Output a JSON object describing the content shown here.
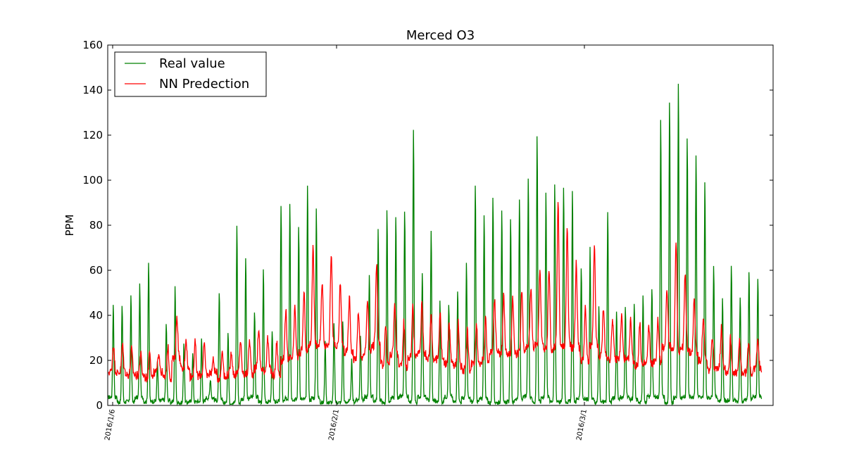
{
  "chart_data": {
    "type": "line",
    "title": "Merced O3",
    "xlabel": "",
    "ylabel": "PPM",
    "ylim": [
      0,
      160
    ],
    "yticks": [
      "0",
      "20",
      "40",
      "60",
      "80",
      "100",
      "120",
      "140",
      "160"
    ],
    "xticks": [
      "2016/1/6",
      "2016/2/1",
      "2016/3/1"
    ],
    "grid": false,
    "legend": "top-left",
    "series": [
      {
        "name": "Real value",
        "color": "#008000",
        "approximate_daily_peaks": [
          45,
          45,
          49,
          54,
          64,
          20,
          36,
          53,
          28,
          23,
          30,
          12,
          51,
          33,
          80,
          66,
          42,
          60,
          34,
          90,
          91,
          80,
          99,
          88,
          28,
          36,
          37,
          20,
          31,
          59,
          78,
          87,
          85,
          87,
          123,
          60,
          78,
          46,
          45,
          52,
          63,
          98,
          86,
          92,
          88,
          84,
          92,
          102,
          120,
          96,
          99,
          98,
          97,
          62,
          70,
          44,
          86,
          42,
          44,
          45,
          50,
          53,
          128,
          136,
          144,
          120,
          112,
          100,
          62,
          47,
          63,
          49,
          60,
          57
        ]
      },
      {
        "name": "NN Predection",
        "color": "#ff0000",
        "approximate_daily_peaks": [
          27,
          27,
          25,
          23,
          25,
          24,
          26,
          40,
          30,
          28,
          27,
          20,
          25,
          24,
          29,
          29,
          34,
          30,
          28,
          42,
          43,
          50,
          72,
          55,
          68,
          55,
          48,
          42,
          47,
          63,
          36,
          46,
          37,
          44,
          46,
          41,
          42,
          37,
          37,
          34,
          37,
          38,
          47,
          49,
          47,
          51,
          53,
          61,
          61,
          90,
          79,
          63,
          43,
          70,
          44,
          39,
          40,
          38,
          36,
          35,
          38,
          52,
          74,
          58,
          47,
          39,
          31,
          35,
          30,
          28,
          29,
          31
        ]
      }
    ]
  }
}
